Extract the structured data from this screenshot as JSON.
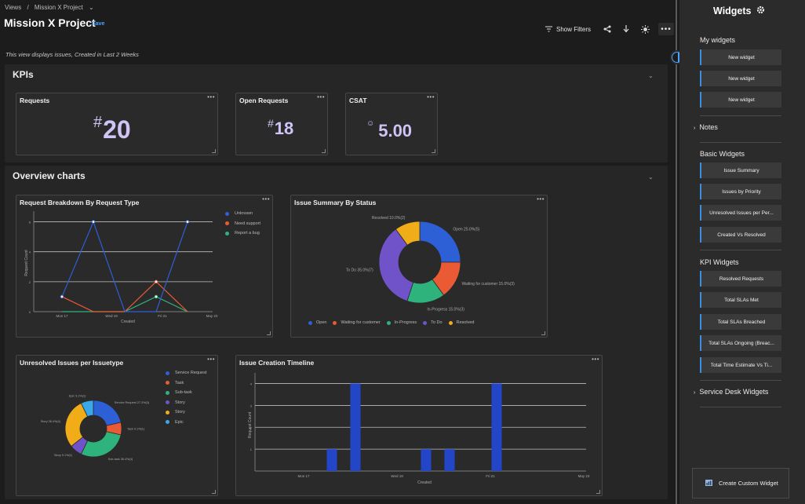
{
  "breadcrumb": {
    "root": "Views",
    "sep": "/",
    "current": "Mission X Project",
    "chev": "⌄"
  },
  "page": {
    "title": "Mission X Project",
    "save": "Save",
    "description": "This view displays issues, Created in Last 2 Weeks"
  },
  "toolbar": {
    "show_filters": "Show Filters",
    "more": "•••"
  },
  "kpis": {
    "title": "KPIs",
    "chev": "⌄",
    "cards": [
      {
        "title": "Requests",
        "prefix": "#",
        "value": "20"
      },
      {
        "title": "Open Requests",
        "prefix": "#",
        "value": "18"
      },
      {
        "title": "CSAT",
        "prefix": "☺",
        "value": "5.00"
      }
    ]
  },
  "overview": {
    "title": "Overview charts",
    "chev": "⌄"
  },
  "card_menu": "•••",
  "chart_data": [
    {
      "type": "line",
      "title": "Request Breakdown By Request Type",
      "xlabel": "Created",
      "ylabel": "Request Count",
      "x_ticks": [
        "Mon 17",
        "Wed 19",
        "Fri 21",
        "May 23"
      ],
      "series": [
        {
          "name": "Unknown",
          "color": "#2d5fd6",
          "values": [
            1,
            6,
            0,
            0,
            6
          ]
        },
        {
          "name": "Need support",
          "color": "#ea5a35",
          "values": [
            1,
            0,
            0,
            2,
            0
          ]
        },
        {
          "name": "Report a bug",
          "color": "#2fb37d",
          "values": [
            0,
            0,
            0,
            1,
            0
          ]
        }
      ]
    },
    {
      "type": "pie",
      "title": "Issue Summary By Status",
      "slices": [
        {
          "label": "Open",
          "value": 25,
          "color": "#2d5fd6",
          "text": "Open 25.0%(5)"
        },
        {
          "label": "Waiting for customer",
          "value": 15,
          "color": "#ea5a35",
          "text": "Waiting for customer 15.0%(3)"
        },
        {
          "label": "In-Progress",
          "value": 15,
          "color": "#2fb37d",
          "text": "In-Progress 15.0%(3)"
        },
        {
          "label": "To Do",
          "value": 35,
          "color": "#7053c9",
          "text": "To Do 35.0%(7)"
        },
        {
          "label": "Resolved",
          "value": 10,
          "color": "#f1ad18",
          "text": "Resolved 10.0%(2)"
        }
      ]
    },
    {
      "type": "pie",
      "title": "Unresolved Issues per Issuetype",
      "slices": [
        {
          "label": "Service Request",
          "value": 27.3,
          "color": "#2d5fd6",
          "text": "Service Request 27.3%(3)"
        },
        {
          "label": "Task",
          "value": 9.1,
          "color": "#ea5a35",
          "text": "Task 9.1%(1)"
        },
        {
          "label": "Sub-task",
          "value": 36.4,
          "color": "#2fb37d",
          "text": "Sub-task 36.4%(4)"
        },
        {
          "label": "Story",
          "value": 9.1,
          "color": "#7053c9",
          "text": "Story 9.1%(1)"
        },
        {
          "label": "Story",
          "value": 36.4,
          "color": "#f1ad18",
          "text": "Story 36.4%(4)"
        },
        {
          "label": "Epic",
          "value": 9.1,
          "color": "#3aa8e8",
          "text": "Epic 9.1%(1)"
        }
      ]
    },
    {
      "type": "bar",
      "title": "Issue Creation Timeline",
      "xlabel": "Created",
      "ylabel": "Request Count",
      "x_ticks": [
        "Mon 17",
        "Wed 19",
        "Fri 21",
        "May 23"
      ],
      "bars": [
        {
          "x": 1,
          "value": 1
        },
        {
          "x": 2,
          "value": 4
        },
        {
          "x": 5,
          "value": 1
        },
        {
          "x": 6,
          "value": 1
        },
        {
          "x": 8,
          "value": 4
        }
      ]
    }
  ],
  "panel": {
    "title": "Widgets",
    "my_widgets": "My widgets",
    "my_items": [
      "New widget",
      "New widget",
      "New widget"
    ],
    "notes": "Notes",
    "basic": "Basic Widgets",
    "basic_items": [
      "Issue Summary",
      "Issues by Priority",
      "Unresolved Issues per Per...",
      "Created Vs Resolved"
    ],
    "kpi": "KPI Widgets",
    "kpi_items": [
      "Resolved Requests",
      "Total SLAs Met",
      "Total SLAs Breached",
      "Total SLAs Ongoing (Breac...",
      "Total Time Estimate Vs Ti..."
    ],
    "service_desk": "Service Desk Widgets",
    "create": "Create Custom Widget"
  }
}
